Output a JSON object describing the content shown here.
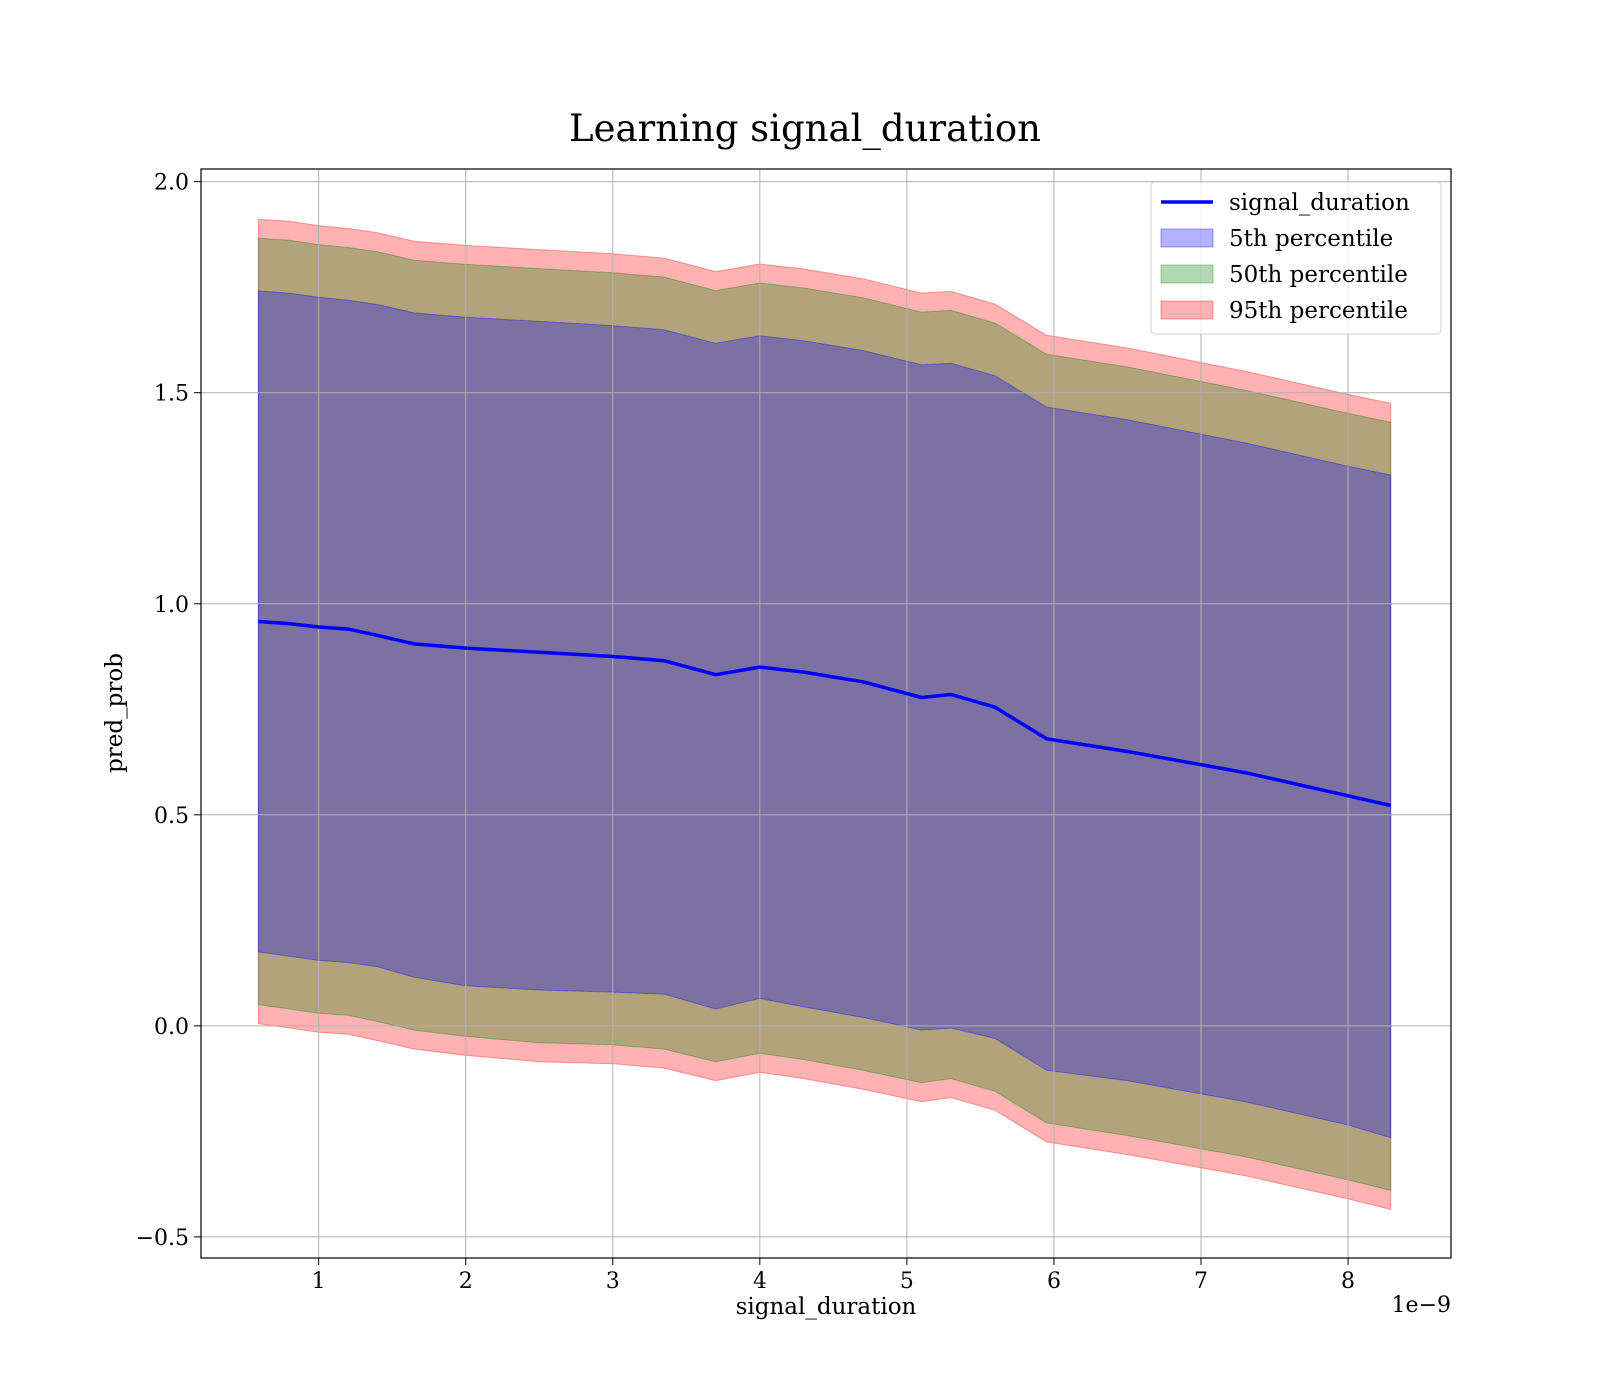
{
  "chart_data": {
    "type": "line",
    "title": "Learning signal_duration",
    "xlabel": "signal_duration",
    "ylabel": "pred_prob",
    "x_offset_text": "1e−9",
    "xlim": [
      0.2,
      8.7
    ],
    "ylim": [
      -0.55,
      2.03
    ],
    "grid": true,
    "legend_position": "top-right",
    "x_ticks": [
      1,
      2,
      3,
      4,
      5,
      6,
      7,
      8
    ],
    "x_tick_labels": [
      "1",
      "2",
      "3",
      "4",
      "5",
      "6",
      "7",
      "8"
    ],
    "y_ticks": [
      -0.5,
      0.0,
      0.5,
      1.0,
      1.5,
      2.0
    ],
    "y_tick_labels": [
      "−0.5",
      "0.0",
      "0.5",
      "1.0",
      "1.5",
      "2.0"
    ],
    "x": [
      0.59,
      0.8,
      1.0,
      1.2,
      1.4,
      1.65,
      2.0,
      2.5,
      3.0,
      3.35,
      3.7,
      4.0,
      4.3,
      4.7,
      5.1,
      5.3,
      5.6,
      5.95,
      6.5,
      7.3,
      8.0,
      8.29
    ],
    "series": [
      {
        "name": "signal_duration",
        "kind": "line",
        "color": "#0000ff",
        "values": [
          0.958,
          0.953,
          0.945,
          0.94,
          0.925,
          0.905,
          0.895,
          0.885,
          0.875,
          0.865,
          0.832,
          0.85,
          0.838,
          0.815,
          0.778,
          0.785,
          0.755,
          0.68,
          0.65,
          0.6,
          0.545,
          0.522
        ]
      },
      {
        "name": "5th percentile",
        "kind": "band",
        "color": "#0000ff",
        "alpha": 0.3,
        "lower": [
          0.175,
          0.165,
          0.155,
          0.15,
          0.14,
          0.115,
          0.095,
          0.085,
          0.08,
          0.075,
          0.04,
          0.065,
          0.045,
          0.02,
          -0.01,
          -0.005,
          -0.03,
          -0.105,
          -0.13,
          -0.18,
          -0.235,
          -0.265
        ],
        "upper": [
          1.741,
          1.736,
          1.726,
          1.719,
          1.709,
          1.689,
          1.679,
          1.669,
          1.659,
          1.649,
          1.617,
          1.635,
          1.623,
          1.6,
          1.566,
          1.57,
          1.54,
          1.466,
          1.436,
          1.381,
          1.326,
          1.305
        ]
      },
      {
        "name": "50th percentile",
        "kind": "band",
        "color": "#008000",
        "alpha": 0.3,
        "lower": [
          0.05,
          0.04,
          0.03,
          0.025,
          0.01,
          -0.01,
          -0.025,
          -0.04,
          -0.045,
          -0.055,
          -0.085,
          -0.065,
          -0.08,
          -0.105,
          -0.135,
          -0.125,
          -0.155,
          -0.23,
          -0.26,
          -0.31,
          -0.365,
          -0.39
        ],
        "upper": [
          1.866,
          1.861,
          1.851,
          1.844,
          1.834,
          1.814,
          1.804,
          1.794,
          1.784,
          1.774,
          1.742,
          1.76,
          1.748,
          1.725,
          1.691,
          1.695,
          1.665,
          1.591,
          1.561,
          1.506,
          1.451,
          1.43
        ]
      },
      {
        "name": "95th percentile",
        "kind": "band",
        "color": "#ff0000",
        "alpha": 0.3,
        "lower": [
          0.005,
          -0.005,
          -0.015,
          -0.02,
          -0.035,
          -0.055,
          -0.07,
          -0.085,
          -0.09,
          -0.1,
          -0.13,
          -0.11,
          -0.125,
          -0.15,
          -0.18,
          -0.17,
          -0.2,
          -0.275,
          -0.305,
          -0.355,
          -0.41,
          -0.435
        ],
        "upper": [
          1.911,
          1.906,
          1.896,
          1.889,
          1.879,
          1.859,
          1.849,
          1.839,
          1.829,
          1.819,
          1.787,
          1.805,
          1.793,
          1.77,
          1.736,
          1.74,
          1.71,
          1.636,
          1.606,
          1.551,
          1.496,
          1.475
        ]
      }
    ],
    "legend": [
      {
        "label": "signal_duration",
        "kind": "line",
        "color": "#0000ff"
      },
      {
        "label": "5th percentile",
        "kind": "band",
        "color": "#0000ff"
      },
      {
        "label": "50th percentile",
        "kind": "band",
        "color": "#008000"
      },
      {
        "label": "95th percentile",
        "kind": "band",
        "color": "#ff0000"
      }
    ]
  }
}
